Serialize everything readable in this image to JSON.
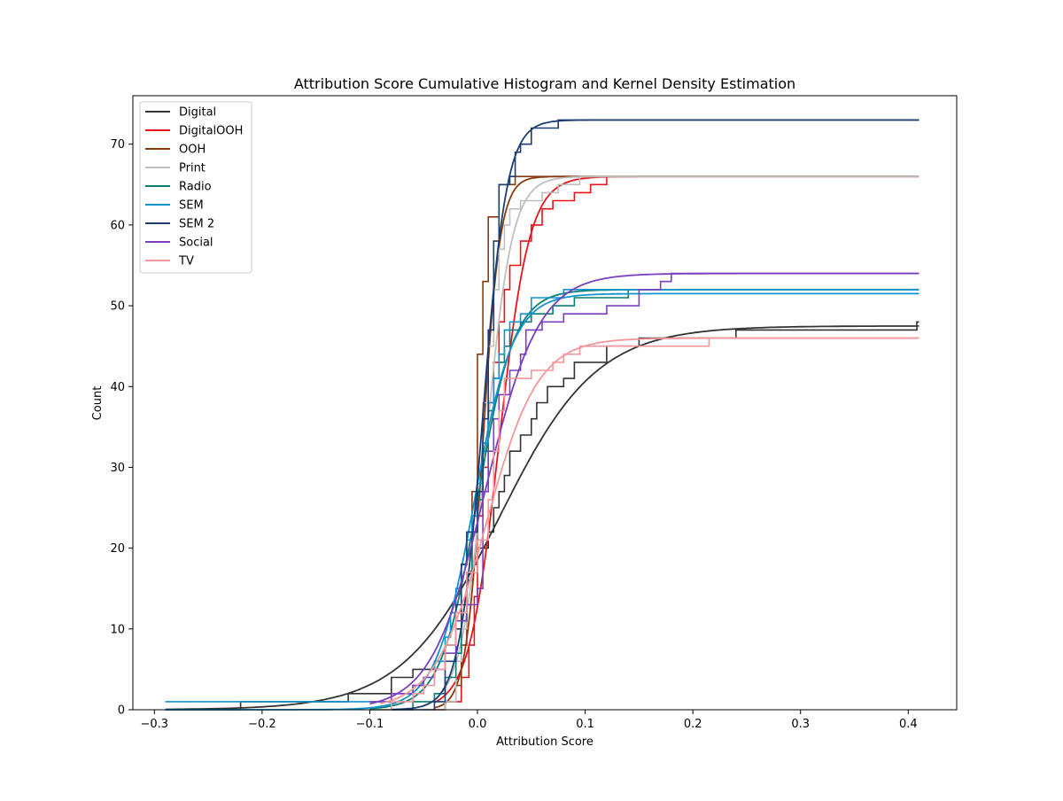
{
  "chart_data": {
    "type": "line",
    "title": "Attribution Score Cumulative Histogram and Kernel Density Estimation",
    "xlabel": "Attribution Score",
    "ylabel": "Count",
    "xlim": [
      -0.32,
      0.445
    ],
    "ylim": [
      0,
      76
    ],
    "xticks": [
      -0.3,
      -0.2,
      -0.1,
      0.0,
      0.1,
      0.2,
      0.3,
      0.4
    ],
    "xtick_labels": [
      "−0.3",
      "−0.2",
      "−0.1",
      "0.0",
      "0.1",
      "0.2",
      "0.3",
      "0.4"
    ],
    "yticks": [
      0,
      10,
      20,
      30,
      40,
      50,
      60,
      70
    ],
    "ytick_labels": [
      "0",
      "10",
      "20",
      "30",
      "40",
      "50",
      "60",
      "70"
    ],
    "grid": false,
    "legend_position": "top-left",
    "x_end": 0.41,
    "series": [
      {
        "name": "Digital",
        "color": "#333333",
        "kde_center": 0.02,
        "kde_scale": 0.045,
        "total": 47.5,
        "steps": [
          [
            -0.29,
            0
          ],
          [
            -0.22,
            1
          ],
          [
            -0.12,
            2
          ],
          [
            -0.08,
            4
          ],
          [
            -0.06,
            5
          ],
          [
            -0.04,
            6
          ],
          [
            -0.03,
            8
          ],
          [
            -0.02,
            10
          ],
          [
            -0.015,
            13
          ],
          [
            -0.01,
            16
          ],
          [
            -0.005,
            18
          ],
          [
            0.0,
            20
          ],
          [
            0.01,
            22
          ],
          [
            0.015,
            25
          ],
          [
            0.02,
            27
          ],
          [
            0.025,
            29
          ],
          [
            0.03,
            32
          ],
          [
            0.04,
            34
          ],
          [
            0.05,
            36
          ],
          [
            0.055,
            38
          ],
          [
            0.065,
            40
          ],
          [
            0.08,
            41
          ],
          [
            0.09,
            43
          ],
          [
            0.12,
            45
          ],
          [
            0.15,
            46
          ],
          [
            0.24,
            47
          ],
          [
            0.408,
            48
          ]
        ]
      },
      {
        "name": "DigitalOOH",
        "color": "#e8141c",
        "kde_center": 0.02,
        "kde_scale": 0.014,
        "total": 66,
        "steps": [
          [
            -0.04,
            0
          ],
          [
            -0.03,
            1
          ],
          [
            -0.015,
            4
          ],
          [
            -0.008,
            8
          ],
          [
            -0.003,
            14
          ],
          [
            0.0,
            24
          ],
          [
            0.005,
            30
          ],
          [
            0.01,
            38
          ],
          [
            0.015,
            43
          ],
          [
            0.02,
            48
          ],
          [
            0.025,
            52
          ],
          [
            0.03,
            55
          ],
          [
            0.04,
            58
          ],
          [
            0.05,
            60
          ],
          [
            0.06,
            62
          ],
          [
            0.07,
            63
          ],
          [
            0.09,
            64
          ],
          [
            0.105,
            65
          ],
          [
            0.12,
            66
          ]
        ]
      },
      {
        "name": "OOH",
        "color": "#8b3a0f",
        "kde_center": 0.005,
        "kde_scale": 0.008,
        "total": 66,
        "steps": [
          [
            -0.04,
            0
          ],
          [
            -0.03,
            1
          ],
          [
            -0.02,
            3
          ],
          [
            -0.015,
            8
          ],
          [
            -0.01,
            16
          ],
          [
            -0.005,
            27
          ],
          [
            0.0,
            44
          ],
          [
            0.005,
            53
          ],
          [
            0.01,
            61
          ],
          [
            0.02,
            65
          ],
          [
            0.035,
            66
          ]
        ]
      },
      {
        "name": "Print",
        "color": "#bfbfbf",
        "kde_center": 0.008,
        "kde_scale": 0.012,
        "total": 66,
        "steps": [
          [
            -0.05,
            0
          ],
          [
            -0.03,
            1
          ],
          [
            -0.02,
            6
          ],
          [
            -0.015,
            10
          ],
          [
            -0.01,
            17
          ],
          [
            -0.005,
            22
          ],
          [
            0.0,
            28
          ],
          [
            0.005,
            38
          ],
          [
            0.01,
            45
          ],
          [
            0.015,
            52
          ],
          [
            0.02,
            57
          ],
          [
            0.025,
            60
          ],
          [
            0.03,
            62
          ],
          [
            0.04,
            63
          ],
          [
            0.06,
            64
          ],
          [
            0.075,
            65
          ],
          [
            0.095,
            66
          ]
        ]
      },
      {
        "name": "Radio",
        "color": "#0b7f73",
        "kde_center": 0.0,
        "kde_scale": 0.017,
        "total": 52,
        "steps": [
          [
            -0.1,
            0
          ],
          [
            -0.06,
            1
          ],
          [
            -0.04,
            2
          ],
          [
            -0.03,
            4
          ],
          [
            -0.02,
            7
          ],
          [
            -0.015,
            11
          ],
          [
            -0.01,
            17
          ],
          [
            -0.005,
            22
          ],
          [
            0.0,
            26
          ],
          [
            0.005,
            32
          ],
          [
            0.01,
            37
          ],
          [
            0.015,
            41
          ],
          [
            0.02,
            43
          ],
          [
            0.025,
            45
          ],
          [
            0.03,
            47
          ],
          [
            0.04,
            48
          ],
          [
            0.05,
            49
          ],
          [
            0.07,
            50
          ],
          [
            0.09,
            51
          ],
          [
            0.14,
            52
          ]
        ]
      },
      {
        "name": "SEM",
        "color": "#1193d0",
        "kde_center": -0.003,
        "kde_scale": 0.018,
        "total": 51.5,
        "steps": [
          [
            -0.29,
            1
          ],
          [
            -0.15,
            1
          ],
          [
            -0.08,
            2
          ],
          [
            -0.06,
            3
          ],
          [
            -0.05,
            4
          ],
          [
            -0.04,
            6
          ],
          [
            -0.03,
            9
          ],
          [
            -0.025,
            12
          ],
          [
            -0.02,
            15
          ],
          [
            -0.015,
            18
          ],
          [
            -0.01,
            21
          ],
          [
            -0.005,
            24
          ],
          [
            0.0,
            28
          ],
          [
            0.005,
            33
          ],
          [
            0.01,
            38
          ],
          [
            0.015,
            41
          ],
          [
            0.02,
            44
          ],
          [
            0.025,
            47
          ],
          [
            0.03,
            48
          ],
          [
            0.04,
            49
          ],
          [
            0.05,
            51
          ],
          [
            0.08,
            52
          ]
        ]
      },
      {
        "name": "SEM 2",
        "color": "#1d3d72",
        "kde_center": 0.005,
        "kde_scale": 0.011,
        "total": 73,
        "steps": [
          [
            -0.08,
            0
          ],
          [
            -0.04,
            1
          ],
          [
            -0.03,
            6
          ],
          [
            -0.02,
            13
          ],
          [
            -0.015,
            18
          ],
          [
            -0.01,
            22
          ],
          [
            0.0,
            27
          ],
          [
            0.005,
            36
          ],
          [
            0.01,
            47
          ],
          [
            0.015,
            58
          ],
          [
            0.02,
            65
          ],
          [
            0.03,
            66
          ],
          [
            0.035,
            69
          ],
          [
            0.04,
            70
          ],
          [
            0.05,
            72
          ],
          [
            0.075,
            73
          ]
        ]
      },
      {
        "name": "Social",
        "color": "#7a3fbf",
        "kde_center": 0.007,
        "kde_scale": 0.025,
        "total": 54,
        "steps": [
          [
            -0.1,
            1
          ],
          [
            -0.08,
            2
          ],
          [
            -0.06,
            3
          ],
          [
            -0.05,
            4
          ],
          [
            -0.04,
            5
          ],
          [
            -0.03,
            7
          ],
          [
            -0.02,
            11
          ],
          [
            -0.01,
            13
          ],
          [
            0.0,
            15
          ],
          [
            0.005,
            27
          ],
          [
            0.01,
            32
          ],
          [
            0.015,
            36
          ],
          [
            0.02,
            39
          ],
          [
            0.03,
            42
          ],
          [
            0.04,
            44
          ],
          [
            0.045,
            47
          ],
          [
            0.06,
            48
          ],
          [
            0.08,
            49
          ],
          [
            0.12,
            50
          ],
          [
            0.15,
            52
          ],
          [
            0.17,
            53
          ],
          [
            0.18,
            54
          ]
        ]
      },
      {
        "name": "TV",
        "color": "#f4969a",
        "kde_center": 0.008,
        "kde_scale": 0.024,
        "total": 46,
        "steps": [
          [
            -0.09,
            0
          ],
          [
            -0.08,
            1
          ],
          [
            -0.06,
            2
          ],
          [
            -0.05,
            3
          ],
          [
            -0.04,
            5
          ],
          [
            -0.03,
            8
          ],
          [
            -0.02,
            12
          ],
          [
            -0.01,
            17
          ],
          [
            0.0,
            21
          ],
          [
            0.01,
            26
          ],
          [
            0.015,
            32
          ],
          [
            0.02,
            37
          ],
          [
            0.025,
            41
          ],
          [
            0.05,
            42
          ],
          [
            0.07,
            43
          ],
          [
            0.08,
            44
          ],
          [
            0.095,
            45
          ],
          [
            0.215,
            46
          ]
        ]
      }
    ]
  }
}
